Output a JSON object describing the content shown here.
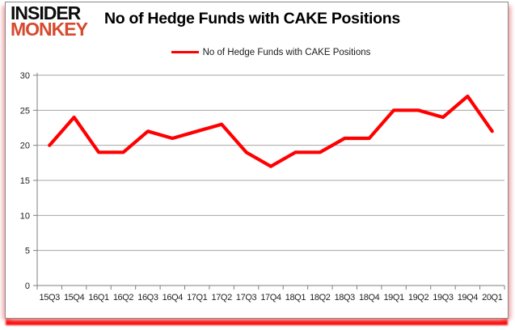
{
  "logo": {
    "line1": "INSIDER",
    "line2": "MONKEY"
  },
  "header": {
    "title": "No of Hedge Funds with CAKE Positions"
  },
  "legend": {
    "label": "No of Hedge Funds with CAKE Positions"
  },
  "colors": {
    "line": "#ff0000",
    "grid": "#a6a6a6",
    "axis": "#7f7f7f",
    "tick_text": "#1f1f1f",
    "logo_red": "#d64a2e",
    "frame_shadow_red": "#fb0808"
  },
  "chart_data": {
    "type": "line",
    "title": "No of Hedge Funds with CAKE Positions",
    "series": [
      {
        "name": "No of Hedge Funds with CAKE Positions",
        "values": [
          20,
          24,
          19,
          19,
          22,
          21,
          22,
          23,
          19,
          17,
          19,
          19,
          21,
          21,
          25,
          25,
          24,
          27,
          22
        ]
      }
    ],
    "categories": [
      "15Q3",
      "15Q4",
      "16Q1",
      "16Q2",
      "16Q3",
      "16Q4",
      "17Q1",
      "17Q2",
      "17Q3",
      "17Q4",
      "18Q1",
      "18Q2",
      "18Q3",
      "18Q4",
      "19Q1",
      "19Q2",
      "19Q3",
      "19Q4",
      "20Q1"
    ],
    "xlabel": "",
    "ylabel": "",
    "ylim": [
      0,
      30
    ],
    "yticks": [
      0,
      5,
      10,
      15,
      20,
      25,
      30
    ],
    "grid": true,
    "legend_position": "top",
    "line_color": "#ff0000"
  }
}
